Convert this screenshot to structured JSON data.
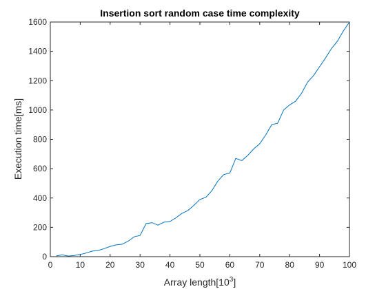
{
  "chart_data": {
    "type": "line",
    "title": "Insertion sort random case time complexity",
    "xlabel_text": "Array length[10",
    "xlabel_sup": "3",
    "xlabel_close": "]",
    "ylabel": "Execution time[ms]",
    "xlim": [
      0,
      100
    ],
    "ylim": [
      0,
      1600
    ],
    "xticks": [
      0,
      10,
      20,
      30,
      40,
      50,
      60,
      70,
      80,
      90,
      100
    ],
    "yticks": [
      0,
      200,
      400,
      600,
      800,
      1000,
      1200,
      1400,
      1600
    ],
    "grid": false,
    "line_color": "#0072BD",
    "series": [
      {
        "x": [
          2,
          4,
          6,
          8,
          10,
          12,
          14,
          16,
          18,
          20,
          22,
          24,
          26,
          28,
          30,
          32,
          34,
          36,
          38,
          40,
          42,
          44,
          46,
          48,
          50,
          52,
          54,
          56,
          58,
          60,
          62,
          64,
          66,
          68,
          70,
          72,
          74,
          76,
          78,
          80,
          82,
          84,
          86,
          88,
          90,
          92,
          94,
          96,
          98,
          100
        ],
        "y": [
          5,
          12,
          4,
          8,
          15,
          25,
          38,
          42,
          55,
          70,
          80,
          85,
          105,
          135,
          145,
          225,
          232,
          215,
          235,
          240,
          265,
          295,
          315,
          350,
          390,
          405,
          450,
          515,
          560,
          570,
          670,
          655,
          690,
          735,
          770,
          830,
          900,
          910,
          1000,
          1035,
          1060,
          1115,
          1190,
          1235,
          1295,
          1355,
          1420,
          1470,
          1540,
          1600
        ]
      }
    ]
  }
}
